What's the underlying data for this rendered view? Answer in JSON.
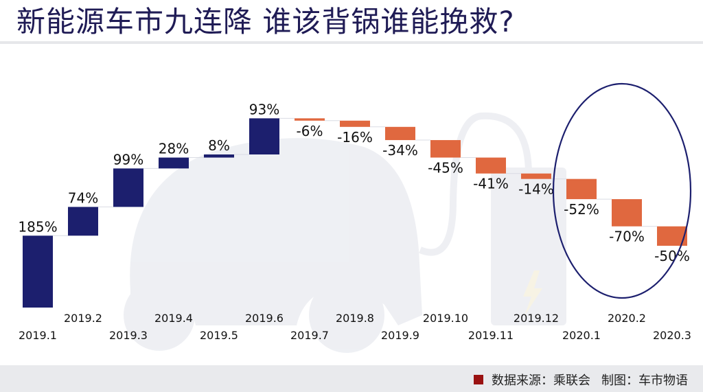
{
  "title": "新能源车市九连降 谁该背锅谁能挽救?",
  "footer": {
    "source": "数据来源：乘联会",
    "credit": "制图：车市物语"
  },
  "colors": {
    "increase": "#1c1f6e",
    "decrease": "#e0683f",
    "highlight_ellipse": "#1c1f6e",
    "source_square": "#9a1212"
  },
  "chart_data": {
    "type": "waterfall",
    "categories": [
      "2019.1",
      "2019.2",
      "2019.3",
      "2019.4",
      "2019.5",
      "2019.6",
      "2019.7",
      "2019.8",
      "2019.9",
      "2019.10",
      "2019.11",
      "2019.12",
      "2020.1",
      "2020.2",
      "2020.3"
    ],
    "values": [
      185,
      74,
      99,
      28,
      8,
      93,
      -6,
      -16,
      -34,
      -45,
      -41,
      -14,
      -52,
      -70,
      -50
    ],
    "labels": [
      "185%",
      "74%",
      "99%",
      "28%",
      "8%",
      "93%",
      "-6%",
      "-16%",
      "-34%",
      "-45%",
      "-41%",
      "-14%",
      "-52%",
      "-70%",
      "-50%"
    ],
    "unit": "%",
    "highlighted_categories": [
      "2020.1",
      "2020.2",
      "2020.3"
    ]
  }
}
